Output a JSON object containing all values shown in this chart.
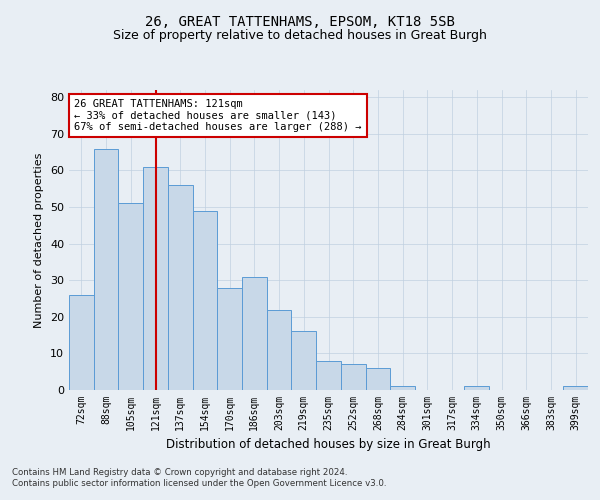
{
  "title1": "26, GREAT TATTENHAMS, EPSOM, KT18 5SB",
  "title2": "Size of property relative to detached houses in Great Burgh",
  "xlabel": "Distribution of detached houses by size in Great Burgh",
  "ylabel": "Number of detached properties",
  "categories": [
    "72sqm",
    "88sqm",
    "105sqm",
    "121sqm",
    "137sqm",
    "154sqm",
    "170sqm",
    "186sqm",
    "203sqm",
    "219sqm",
    "235sqm",
    "252sqm",
    "268sqm",
    "284sqm",
    "301sqm",
    "317sqm",
    "334sqm",
    "350sqm",
    "366sqm",
    "383sqm",
    "399sqm"
  ],
  "values": [
    26,
    66,
    51,
    61,
    56,
    49,
    28,
    31,
    22,
    16,
    8,
    7,
    6,
    1,
    0,
    0,
    1,
    0,
    0,
    0,
    1
  ],
  "bar_color": "#c8d8e8",
  "bar_edge_color": "#5b9bd5",
  "vline_x": 3,
  "vline_color": "#cc0000",
  "annotation_text": "26 GREAT TATTENHAMS: 121sqm\n← 33% of detached houses are smaller (143)\n67% of semi-detached houses are larger (288) →",
  "annotation_box_color": "#ffffff",
  "annotation_box_edge": "#cc0000",
  "ylim": [
    0,
    82
  ],
  "yticks": [
    0,
    10,
    20,
    30,
    40,
    50,
    60,
    70,
    80
  ],
  "grid_color": "#c0d0e0",
  "footer1": "Contains HM Land Registry data © Crown copyright and database right 2024.",
  "footer2": "Contains public sector information licensed under the Open Government Licence v3.0.",
  "bg_color": "#e8eef4",
  "plot_bg_color": "#e8eef4"
}
